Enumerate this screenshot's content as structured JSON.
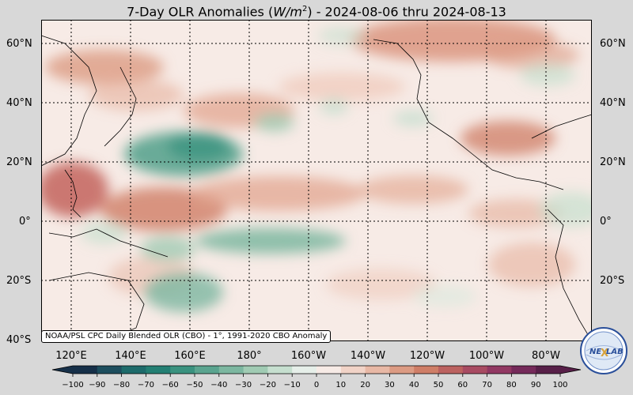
{
  "title": {
    "prefix": "7-Day OLR Anomalies (",
    "unit_base": "W/m",
    "unit_exp": "2",
    "suffix": ") - 2024-08-06 thru 2024-08-13"
  },
  "lat_labels": [
    "60°N",
    "40°N",
    "20°N",
    "0°",
    "20°S",
    "40°S"
  ],
  "lon_labels": [
    "120°E",
    "140°E",
    "160°E",
    "180°",
    "160°W",
    "140°W",
    "120°W",
    "100°W",
    "80°W"
  ],
  "credit": "NOAA/PSL CPC Daily Blended OLR (CBO) - 1°, 1991-2020 CBO Anomaly",
  "colorbar": {
    "ticks": [
      "−100",
      "−90",
      "−80",
      "−70",
      "−60",
      "−50",
      "−40",
      "−30",
      "−20",
      "−10",
      "0",
      "10",
      "20",
      "30",
      "40",
      "50",
      "60",
      "70",
      "80",
      "90",
      "100"
    ],
    "colors": [
      "#163049",
      "#1d4e5e",
      "#1d6b6b",
      "#237f73",
      "#3a927f",
      "#5aa48f",
      "#7cb7a0",
      "#a0cbb3",
      "#c6dfcf",
      "#e6efe9",
      "#f7ebe6",
      "#f1d3c7",
      "#e8b8a5",
      "#dc9b83",
      "#cf7e67",
      "#bc6260",
      "#a84b62",
      "#913862",
      "#752a5a",
      "#571f48"
    ]
  },
  "logo": {
    "text_left": "NE",
    "text_right": "LAB",
    "accent_letter": "X"
  },
  "colors": {
    "background": "#d8d8d8",
    "neutral": "#f7ebe6",
    "positive": "#dc9b83",
    "negative": "#5aa48f"
  }
}
